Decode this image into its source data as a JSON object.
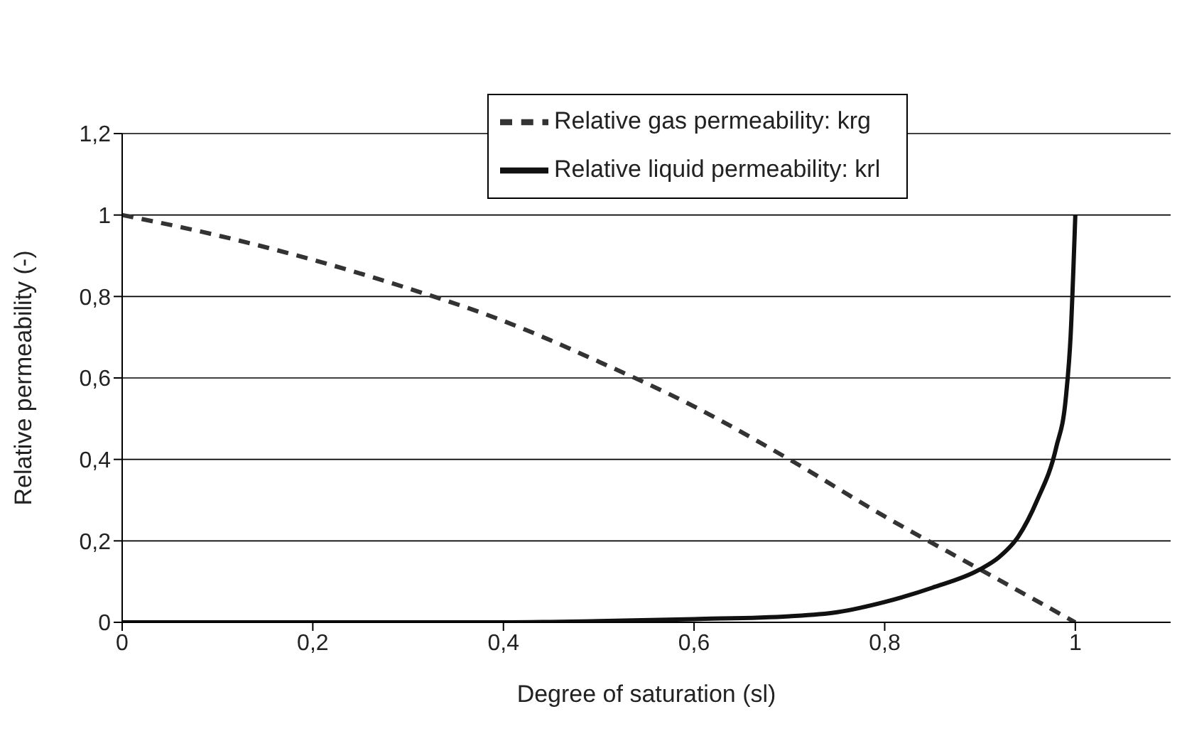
{
  "chart_data": {
    "type": "line",
    "xlabel": "Degree of saturation (sl)",
    "ylabel": "Relative permeability (-)",
    "xlim": [
      0,
      1.1
    ],
    "xticks": [
      0,
      {
        "value": 0.2,
        "label": "0,2"
      },
      {
        "value": 0.4,
        "label": "0,4"
      },
      {
        "value": 0.6,
        "label": "0,6"
      },
      {
        "value": 0.8,
        "label": "0,8"
      },
      1
    ],
    "ylim": [
      0,
      1.2
    ],
    "yticks": [
      0,
      {
        "value": 0.2,
        "label": "0,2"
      },
      {
        "value": 0.4,
        "label": "0,4"
      },
      {
        "value": 0.6,
        "label": "0,6"
      },
      {
        "value": 0.8,
        "label": "0,8"
      },
      1,
      {
        "value": 1.2,
        "label": "1,2"
      }
    ],
    "grid": "y",
    "legend": "top right",
    "marker": "none",
    "series": [
      {
        "name": "Relative gas permeability: krg",
        "color": "#333333",
        "line_style": "dashed",
        "x": [
          0,
          0.1,
          0.2,
          0.3,
          0.4,
          0.5,
          0.6,
          0.7,
          0.8,
          0.9,
          1
        ],
        "values": [
          1,
          0.95,
          0.89,
          0.82,
          0.74,
          0.64,
          0.53,
          0.4,
          0.26,
          0.13,
          0
        ]
      },
      {
        "name": "Relative liquid permeability: krl",
        "color": "#111111",
        "line_style": "solid",
        "x": [
          0,
          0.2,
          0.4,
          0.5,
          0.6,
          0.7,
          0.75,
          0.8,
          0.85,
          0.9,
          0.92,
          0.94,
          0.96,
          0.98,
          0.99,
          0.995,
          1
        ],
        "values": [
          0,
          0,
          0,
          0.003,
          0.008,
          0.015,
          0.025,
          0.05,
          0.085,
          0.13,
          0.16,
          0.21,
          0.3,
          0.43,
          0.55,
          0.7,
          1
        ]
      }
    ]
  }
}
